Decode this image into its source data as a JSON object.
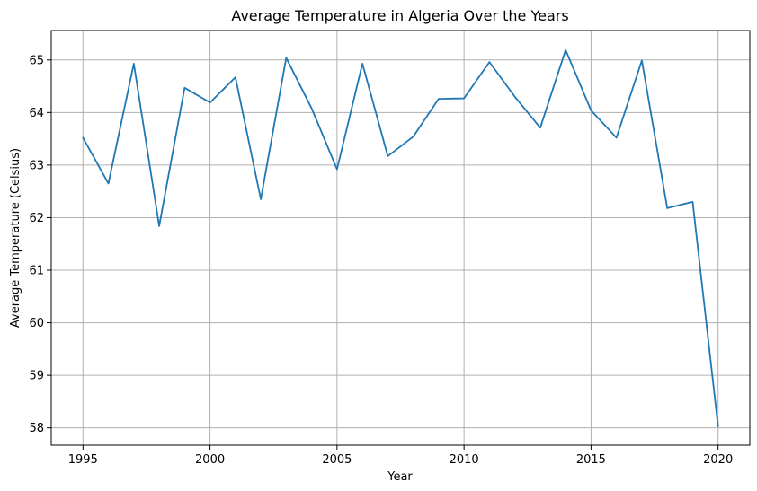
{
  "chart_data": {
    "type": "line",
    "title": "Average Temperature in Algeria Over the Years",
    "xlabel": "Year",
    "ylabel": "Average Temperature (Celsius)",
    "xlim": [
      1993.75,
      2021.25
    ],
    "ylim": [
      57.67,
      65.56
    ],
    "grid": true,
    "line_color": "#1f77b4",
    "x_ticks": [
      1995,
      2000,
      2005,
      2010,
      2015,
      2020
    ],
    "y_ticks": [
      58,
      59,
      60,
      61,
      62,
      63,
      64,
      65
    ],
    "x_tick_labels": [
      "1995",
      "2000",
      "2005",
      "2010",
      "2015",
      "2020"
    ],
    "y_tick_labels": [
      "58",
      "59",
      "60",
      "61",
      "62",
      "63",
      "64",
      "65"
    ],
    "series": [
      {
        "x": [
          1995,
          1996,
          1997,
          1998,
          1999,
          2000,
          2001,
          2002,
          2003,
          2004,
          2005,
          2006,
          2007,
          2008,
          2009,
          2010,
          2011,
          2012,
          2013,
          2014,
          2015,
          2016,
          2017,
          2018,
          2019,
          2020
        ],
        "y": [
          63.52,
          62.65,
          64.93,
          61.84,
          64.47,
          64.19,
          64.67,
          62.35,
          65.04,
          64.08,
          62.92,
          64.93,
          63.17,
          63.54,
          64.26,
          64.27,
          64.96,
          64.3,
          63.71,
          65.19,
          64.04,
          63.52,
          64.99,
          62.18,
          62.3,
          58.03
        ]
      }
    ]
  }
}
